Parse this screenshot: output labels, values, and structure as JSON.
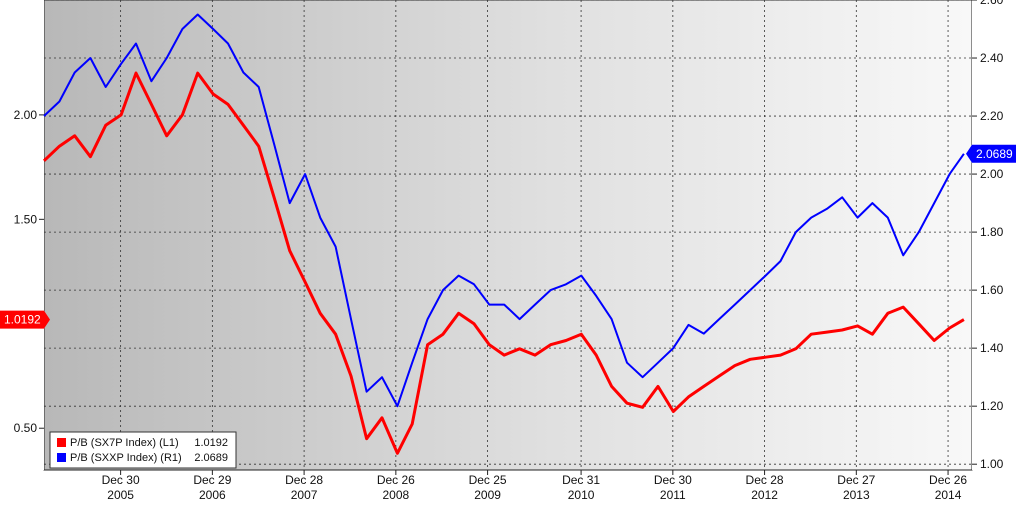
{
  "chart_data": {
    "type": "line",
    "x_ticks": [
      {
        "date": "2005-12-30",
        "label": "Dec 30",
        "year": "2005"
      },
      {
        "date": "2006-12-29",
        "label": "Dec 29",
        "year": "2006"
      },
      {
        "date": "2007-12-28",
        "label": "Dec 28",
        "year": "2007"
      },
      {
        "date": "2008-12-26",
        "label": "Dec 26",
        "year": "2008"
      },
      {
        "date": "2009-12-25",
        "label": "Dec 25",
        "year": "2009"
      },
      {
        "date": "2010-12-31",
        "label": "Dec 31",
        "year": "2010"
      },
      {
        "date": "2011-12-30",
        "label": "Dec 30",
        "year": "2011"
      },
      {
        "date": "2012-12-28",
        "label": "Dec 28",
        "year": "2012"
      },
      {
        "date": "2013-12-27",
        "label": "Dec 27",
        "year": "2013"
      },
      {
        "date": "2014-12-26",
        "label": "Dec 26",
        "year": "2014"
      }
    ],
    "xlim": [
      "2005-03-01",
      "2015-03-31"
    ],
    "y_left": {
      "min": 0.3,
      "max": 2.55,
      "ticks": [
        "0.50",
        "1.00",
        "1.50",
        "2.00"
      ]
    },
    "y_right": {
      "min": 0.98,
      "max": 2.6,
      "ticks": [
        "1.00",
        "1.20",
        "1.40",
        "1.60",
        "1.80",
        "2.00",
        "2.20",
        "2.40",
        "2.60"
      ]
    },
    "grid": true,
    "legend_position": "bottom-left",
    "series": [
      {
        "name": "P/B (SX7P Index) (L1)",
        "value_label": "1.0192",
        "axis": "left",
        "color": "#ff0000",
        "x": [
          "2005-03-01",
          "2005-05-01",
          "2005-07-01",
          "2005-09-01",
          "2005-11-01",
          "2006-01-01",
          "2006-03-01",
          "2006-05-01",
          "2006-07-01",
          "2006-09-01",
          "2006-11-01",
          "2007-01-01",
          "2007-03-01",
          "2007-05-01",
          "2007-07-01",
          "2007-09-01",
          "2007-11-01",
          "2008-01-01",
          "2008-03-01",
          "2008-05-01",
          "2008-07-01",
          "2008-09-01",
          "2008-11-01",
          "2009-01-01",
          "2009-03-01",
          "2009-05-01",
          "2009-07-01",
          "2009-09-01",
          "2009-11-01",
          "2010-01-01",
          "2010-03-01",
          "2010-05-01",
          "2010-07-01",
          "2010-09-01",
          "2010-11-01",
          "2011-01-01",
          "2011-03-01",
          "2011-05-01",
          "2011-07-01",
          "2011-09-01",
          "2011-11-01",
          "2012-01-01",
          "2012-03-01",
          "2012-05-01",
          "2012-07-01",
          "2012-09-01",
          "2012-11-01",
          "2013-01-01",
          "2013-03-01",
          "2013-05-01",
          "2013-07-01",
          "2013-09-01",
          "2013-11-01",
          "2014-01-01",
          "2014-03-01",
          "2014-05-01",
          "2014-07-01",
          "2014-09-01",
          "2014-11-01",
          "2015-01-01",
          "2015-02-27"
        ],
        "values": [
          1.78,
          1.85,
          1.9,
          1.8,
          1.95,
          2.0,
          2.2,
          2.05,
          1.9,
          2.0,
          2.2,
          2.1,
          2.05,
          1.95,
          1.85,
          1.6,
          1.35,
          1.2,
          1.05,
          0.95,
          0.75,
          0.45,
          0.55,
          0.38,
          0.52,
          0.9,
          0.95,
          1.05,
          1.0,
          0.9,
          0.85,
          0.88,
          0.85,
          0.9,
          0.92,
          0.95,
          0.85,
          0.7,
          0.62,
          0.6,
          0.7,
          0.58,
          0.65,
          0.7,
          0.75,
          0.8,
          0.83,
          0.84,
          0.85,
          0.88,
          0.95,
          0.96,
          0.97,
          0.99,
          0.95,
          1.05,
          1.08,
          1.0,
          0.92,
          0.98,
          1.02
        ]
      },
      {
        "name": "P/B (SXXP Index) (R1)",
        "value_label": "2.0689",
        "axis": "right",
        "color": "#0000ff",
        "x": [
          "2005-03-01",
          "2005-05-01",
          "2005-07-01",
          "2005-09-01",
          "2005-11-01",
          "2006-01-01",
          "2006-03-01",
          "2006-05-01",
          "2006-07-01",
          "2006-09-01",
          "2006-11-01",
          "2007-01-01",
          "2007-03-01",
          "2007-05-01",
          "2007-07-01",
          "2007-09-01",
          "2007-11-01",
          "2008-01-01",
          "2008-03-01",
          "2008-05-01",
          "2008-07-01",
          "2008-09-01",
          "2008-11-01",
          "2009-01-01",
          "2009-03-01",
          "2009-05-01",
          "2009-07-01",
          "2009-09-01",
          "2009-11-01",
          "2010-01-01",
          "2010-03-01",
          "2010-05-01",
          "2010-07-01",
          "2010-09-01",
          "2010-11-01",
          "2011-01-01",
          "2011-03-01",
          "2011-05-01",
          "2011-07-01",
          "2011-09-01",
          "2011-11-01",
          "2012-01-01",
          "2012-03-01",
          "2012-05-01",
          "2012-07-01",
          "2012-09-01",
          "2012-11-01",
          "2013-01-01",
          "2013-03-01",
          "2013-05-01",
          "2013-07-01",
          "2013-09-01",
          "2013-11-01",
          "2014-01-01",
          "2014-03-01",
          "2014-05-01",
          "2014-07-01",
          "2014-09-01",
          "2014-11-01",
          "2015-01-01",
          "2015-02-27"
        ],
        "values": [
          2.2,
          2.25,
          2.35,
          2.4,
          2.3,
          2.38,
          2.45,
          2.32,
          2.4,
          2.5,
          2.55,
          2.5,
          2.45,
          2.35,
          2.3,
          2.1,
          1.9,
          2.0,
          1.85,
          1.75,
          1.5,
          1.25,
          1.3,
          1.2,
          1.35,
          1.5,
          1.6,
          1.65,
          1.62,
          1.55,
          1.55,
          1.5,
          1.55,
          1.6,
          1.62,
          1.65,
          1.58,
          1.5,
          1.35,
          1.3,
          1.35,
          1.4,
          1.48,
          1.45,
          1.5,
          1.55,
          1.6,
          1.65,
          1.7,
          1.8,
          1.85,
          1.88,
          1.92,
          1.85,
          1.9,
          1.85,
          1.72,
          1.8,
          1.9,
          2.0,
          2.07
        ]
      }
    ]
  }
}
